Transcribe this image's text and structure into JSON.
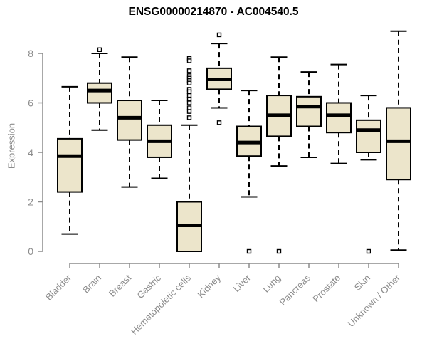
{
  "chart_data": {
    "type": "boxplot",
    "title": "ENSG00000214870 - AC004540.5",
    "ylabel": "Expression",
    "xlabel": "",
    "ylim": [
      0,
      9
    ],
    "yticks": [
      0,
      2,
      4,
      6,
      8
    ],
    "grid": false,
    "legend": "none",
    "outlier_marker": "open-square",
    "colors": {
      "box_fill": "#ece5cb",
      "box_stroke": "#000000",
      "median": "#000000",
      "whisker": "#000000",
      "axis": "#8c8c8c",
      "title": "#000000",
      "background": "#ffffff"
    },
    "categories": [
      "Bladder",
      "Brain",
      "Breast",
      "Gastric",
      "Hematopoietic cells",
      "Kidney",
      "Liver",
      "Lung",
      "Pancreas",
      "Prostate",
      "Skin",
      "Unknown / Other"
    ],
    "series": [
      {
        "category": "Bladder",
        "whisker_low": 0.7,
        "q1": 2.4,
        "median": 3.85,
        "q3": 4.55,
        "whisker_high": 6.65,
        "outliers": []
      },
      {
        "category": "Brain",
        "whisker_low": 4.9,
        "q1": 6.0,
        "median": 6.5,
        "q3": 6.8,
        "whisker_high": 8.0,
        "outliers": [
          8.15
        ]
      },
      {
        "category": "Breast",
        "whisker_low": 2.6,
        "q1": 4.5,
        "median": 5.4,
        "q3": 6.1,
        "whisker_high": 7.85,
        "outliers": []
      },
      {
        "category": "Gastric",
        "whisker_low": 2.95,
        "q1": 3.8,
        "median": 4.45,
        "q3": 5.1,
        "whisker_high": 6.1,
        "outliers": []
      },
      {
        "category": "Hematopoietic cells",
        "whisker_low": 0.0,
        "q1": 0.0,
        "median": 1.05,
        "q3": 2.0,
        "whisker_high": 5.1,
        "outliers": [
          7.8,
          7.7,
          7.3,
          7.1,
          7.0,
          6.9,
          6.8,
          6.55,
          6.45,
          6.3,
          6.15,
          6.0,
          5.8,
          5.65,
          5.4
        ]
      },
      {
        "category": "Kidney",
        "whisker_low": 5.8,
        "q1": 6.55,
        "median": 6.95,
        "q3": 7.4,
        "whisker_high": 8.4,
        "outliers": [
          8.75,
          5.2
        ]
      },
      {
        "category": "Liver",
        "whisker_low": 2.2,
        "q1": 3.85,
        "median": 4.4,
        "q3": 5.05,
        "whisker_high": 6.5,
        "outliers": [
          0.0
        ]
      },
      {
        "category": "Lung",
        "whisker_low": 3.45,
        "q1": 4.65,
        "median": 5.5,
        "q3": 6.3,
        "whisker_high": 7.85,
        "outliers": [
          0.0
        ]
      },
      {
        "category": "Pancreas",
        "whisker_low": 3.8,
        "q1": 5.05,
        "median": 5.85,
        "q3": 6.25,
        "whisker_high": 7.25,
        "outliers": []
      },
      {
        "category": "Prostate",
        "whisker_low": 3.55,
        "q1": 4.8,
        "median": 5.5,
        "q3": 6.0,
        "whisker_high": 7.55,
        "outliers": []
      },
      {
        "category": "Skin",
        "whisker_low": 3.7,
        "q1": 4.0,
        "median": 4.9,
        "q3": 5.3,
        "whisker_high": 6.3,
        "outliers": [
          0.0
        ]
      },
      {
        "category": "Unknown / Other",
        "whisker_low": 0.05,
        "q1": 2.9,
        "median": 4.45,
        "q3": 5.8,
        "whisker_high": 8.9,
        "outliers": []
      }
    ]
  }
}
